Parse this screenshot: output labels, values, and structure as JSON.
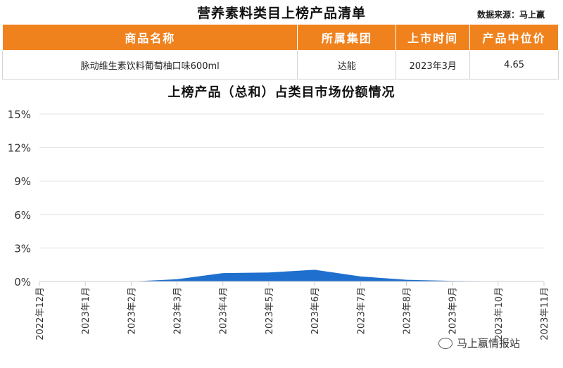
{
  "header": {
    "title": "营养素料类目上榜产品清单",
    "source": "数据来源：马上赢"
  },
  "table": {
    "columns": [
      "商品名称",
      "所属集团",
      "上市时间",
      "产品中位价"
    ],
    "rows": [
      [
        "脉动维生素饮料葡萄柚口味600ml",
        "达能",
        "2023年3月",
        "4.65"
      ]
    ]
  },
  "colors": {
    "header_bg": "#f0821e",
    "area_fill": "#1f6fce",
    "grid": "#e3e3e3"
  },
  "chart_data": {
    "type": "area",
    "title": "上榜产品（总和）占类目市场份额情况",
    "x": [
      "2022年12月",
      "2023年1月",
      "2023年2月",
      "2023年3月",
      "2023年4月",
      "2023年5月",
      "2023年6月",
      "2023年7月",
      "2023年8月",
      "2023年9月",
      "2023年10月",
      "2023年11月"
    ],
    "series": [
      {
        "values": [
          0,
          0,
          0,
          0.2,
          0.75,
          0.8,
          1.05,
          0.45,
          0.15,
          0.05,
          0.02,
          0
        ]
      }
    ],
    "ylim": [
      0,
      15
    ],
    "yticks": [
      "0%",
      "3%",
      "6%",
      "9%",
      "12%",
      "15%"
    ],
    "ytick_values": [
      0,
      3,
      6,
      9,
      12,
      15
    ],
    "grid": true
  },
  "watermark": "马上赢情报站"
}
